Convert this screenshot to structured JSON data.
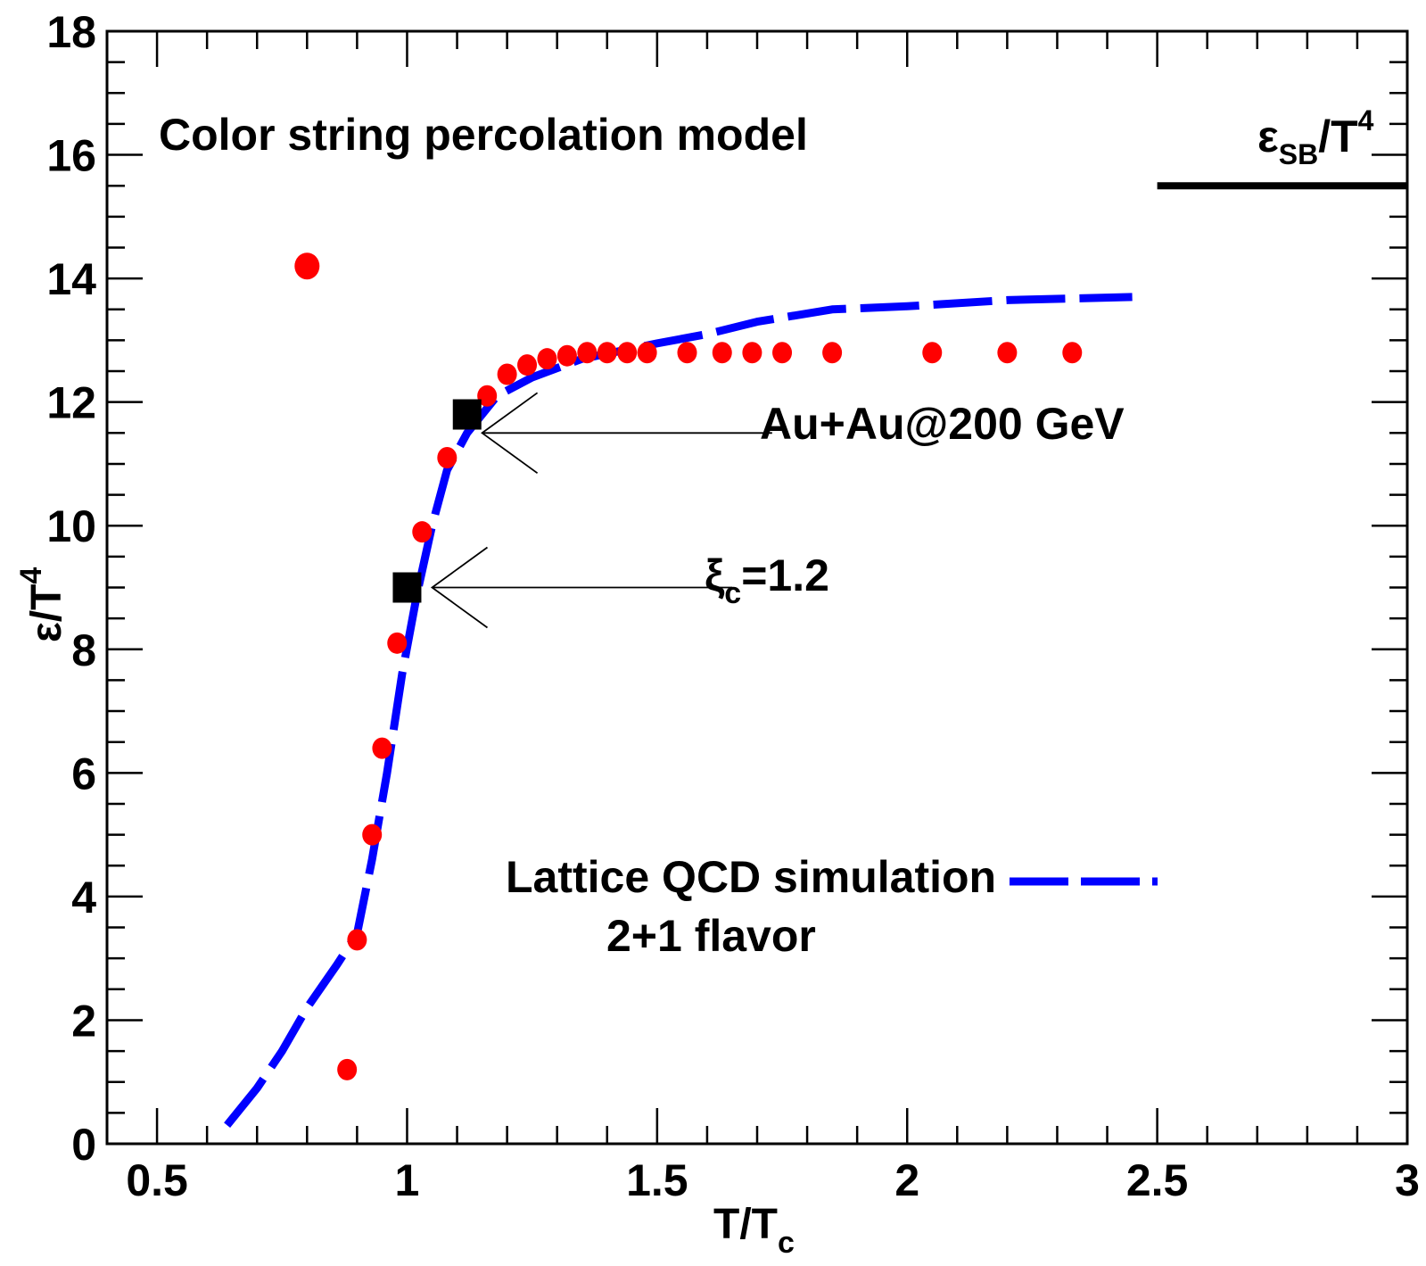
{
  "chart_data": {
    "type": "scatter",
    "title": "",
    "xlabel": {
      "main": "T/T",
      "sub": "c"
    },
    "ylabel": {
      "main": "ε/T",
      "sup": "4"
    },
    "xlim": [
      0.4,
      3.0
    ],
    "ylim": [
      0,
      18
    ],
    "x_ticks": [
      0.5,
      1,
      1.5,
      2,
      2.5,
      3
    ],
    "x_tick_labels": [
      "0.5",
      "1",
      "1.5",
      "2",
      "2.5",
      "3"
    ],
    "y_ticks": [
      0,
      2,
      4,
      6,
      8,
      10,
      12,
      14,
      16,
      18
    ],
    "y_tick_labels": [
      "0",
      "2",
      "4",
      "6",
      "8",
      "10",
      "12",
      "14",
      "16",
      "18"
    ],
    "grid": false,
    "series": [
      {
        "name": "Color string percolation model",
        "kind": "markers",
        "color": "#ff0000",
        "points": [
          [
            0.8,
            14.2
          ],
          [
            0.88,
            1.2
          ],
          [
            0.9,
            3.3
          ],
          [
            0.93,
            5.0
          ],
          [
            0.95,
            6.4
          ],
          [
            0.98,
            8.1
          ],
          [
            1.03,
            9.9
          ],
          [
            1.08,
            11.1
          ],
          [
            1.16,
            12.1
          ],
          [
            1.2,
            12.45
          ],
          [
            1.24,
            12.6
          ],
          [
            1.28,
            12.7
          ],
          [
            1.32,
            12.75
          ],
          [
            1.36,
            12.8
          ],
          [
            1.4,
            12.8
          ],
          [
            1.44,
            12.8
          ],
          [
            1.48,
            12.8
          ],
          [
            1.56,
            12.8
          ],
          [
            1.63,
            12.8
          ],
          [
            1.69,
            12.8
          ],
          [
            1.75,
            12.8
          ],
          [
            1.85,
            12.8
          ],
          [
            2.05,
            12.8
          ],
          [
            2.2,
            12.8
          ],
          [
            2.33,
            12.8
          ]
        ]
      },
      {
        "name": "Au+Au@200 GeV",
        "kind": "square-markers",
        "color": "#000000",
        "points": [
          [
            1.0,
            9.0
          ],
          [
            1.12,
            11.8
          ]
        ]
      },
      {
        "name": "Lattice QCD simulation 2+1 flavor",
        "kind": "dashed-line",
        "color": "#0000ff",
        "points": [
          [
            0.64,
            0.3
          ],
          [
            0.7,
            0.9
          ],
          [
            0.75,
            1.5
          ],
          [
            0.8,
            2.2
          ],
          [
            0.86,
            2.9
          ],
          [
            0.9,
            3.4
          ],
          [
            0.93,
            4.6
          ],
          [
            0.96,
            6.0
          ],
          [
            0.99,
            7.6
          ],
          [
            1.02,
            8.9
          ],
          [
            1.05,
            10.0
          ],
          [
            1.08,
            10.9
          ],
          [
            1.12,
            11.5
          ],
          [
            1.18,
            12.1
          ],
          [
            1.25,
            12.4
          ],
          [
            1.35,
            12.7
          ],
          [
            1.5,
            12.95
          ],
          [
            1.6,
            13.1
          ],
          [
            1.7,
            13.3
          ],
          [
            1.85,
            13.5
          ],
          [
            2.0,
            13.55
          ],
          [
            2.2,
            13.65
          ],
          [
            2.45,
            13.7
          ]
        ]
      }
    ],
    "reference_line": {
      "label_main": "ε",
      "label_sub": "SB",
      "label_tail": "/T",
      "label_sup": "4",
      "y": 15.5,
      "x_range": [
        2.5,
        3.0
      ]
    },
    "annotations": {
      "model_label": "Color string percolation model",
      "collision_label": "Au+Au@200 GeV",
      "xi_main": "ξ",
      "xi_sub": "c",
      "xi_tail": "=1.2",
      "legend_line1": "Lattice QCD simulation",
      "legend_line2": "2+1 flavor"
    },
    "arrows": [
      {
        "target": [
          1.15,
          11.5
        ],
        "from_x": 1.73,
        "points_to": "Au+Au@200 GeV"
      },
      {
        "target": [
          1.05,
          9.0
        ],
        "from_x": 1.65,
        "points_to": "ξc=1.2"
      }
    ]
  }
}
